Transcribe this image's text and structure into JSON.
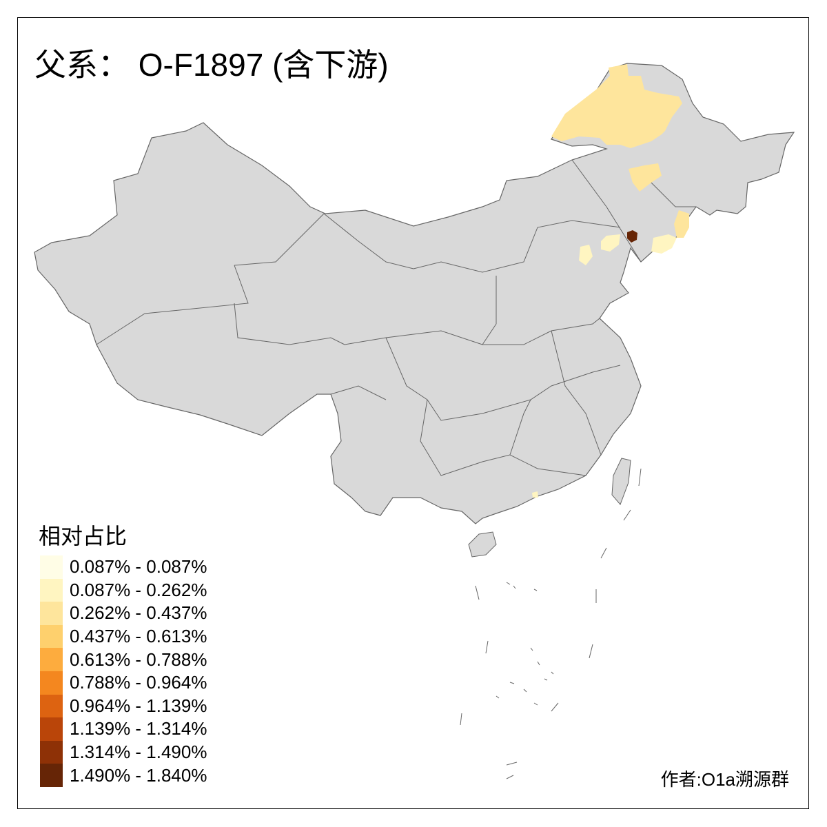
{
  "title": "父系： O-F1897 (含下游)",
  "legend": {
    "title": "相对占比",
    "items": [
      {
        "label": "0.087% - 0.087%",
        "color": "#FFFDE6"
      },
      {
        "label": "0.087% - 0.262%",
        "color": "#FFF5C1"
      },
      {
        "label": "0.262% - 0.437%",
        "color": "#FEE59C"
      },
      {
        "label": "0.437% - 0.613%",
        "color": "#FED06D"
      },
      {
        "label": "0.613% - 0.788%",
        "color": "#FDAC3E"
      },
      {
        "label": "0.788% - 0.964%",
        "color": "#F4871F"
      },
      {
        "label": "0.964% - 1.139%",
        "color": "#DD6311"
      },
      {
        "label": "1.139% - 1.314%",
        "color": "#BA4509"
      },
      {
        "label": "1.314% - 1.490%",
        "color": "#8E3106"
      },
      {
        "label": "1.490% - 1.840%",
        "color": "#662506"
      }
    ]
  },
  "credit": "作者:O1a溯源群",
  "colors": {
    "no_data": "#D9D9D9",
    "border": "#666666"
  }
}
